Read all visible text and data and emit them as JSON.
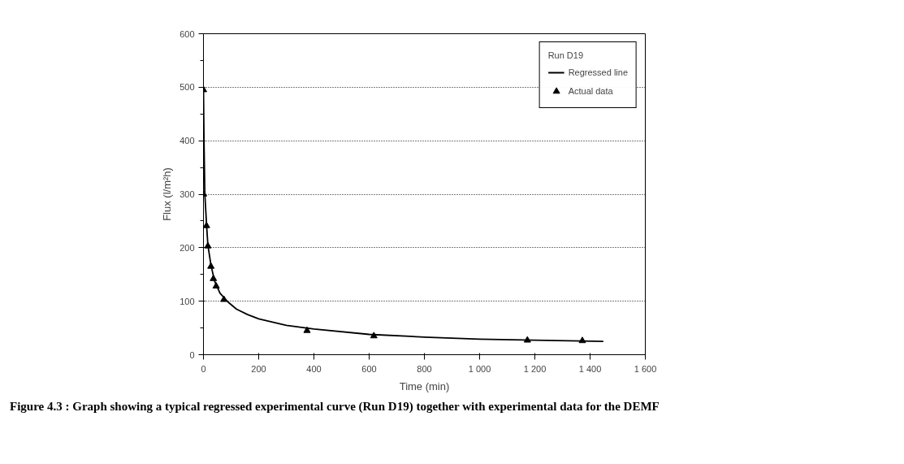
{
  "chart_data": {
    "type": "line",
    "xlabel": "Time (min)",
    "ylabel": "Flux (l/m²h)",
    "legend_title": "Run D19",
    "legend": "top right",
    "grid": "y",
    "xlim": [
      0,
      1600
    ],
    "ylim": [
      0,
      600
    ],
    "xticks": [
      0,
      200,
      400,
      600,
      800,
      {
        "value": 1000,
        "label": "1 000"
      },
      {
        "value": 1200,
        "label": "1 200"
      },
      {
        "value": 1400,
        "label": "1 400"
      },
      {
        "value": 1600,
        "label": "1 600"
      }
    ],
    "yticks": [
      0,
      100,
      200,
      300,
      400,
      500,
      600
    ],
    "series": [
      {
        "name": "Regressed line",
        "line_style": "solid",
        "color": "#000000",
        "x": [
          0,
          2,
          5,
          11,
          16,
          27,
          40,
          60,
          90,
          120,
          160,
          200,
          300,
          400,
          600,
          800,
          1000,
          1200,
          1448
        ],
        "values": [
          500,
          400,
          300,
          245,
          205,
          168,
          138,
          115,
          98,
          85,
          75,
          67,
          55,
          48,
          38,
          33,
          29,
          27,
          25
        ]
      },
      {
        "name": "Actual data",
        "type": "scatter",
        "marker": "triangle",
        "color": "#000000",
        "x": [
          0,
          0,
          11,
          16,
          27,
          36,
          46,
          74,
          375,
          617,
          1173,
          1372
        ],
        "values": [
          495,
          300,
          241,
          203,
          165,
          142,
          128,
          103,
          45,
          35,
          27,
          26
        ]
      }
    ],
    "annotations": [
      "Figure 4.3 :   Graph showing a typical regressed experimental curve (Run D19) together with experimental data for the DEMF"
    ]
  }
}
